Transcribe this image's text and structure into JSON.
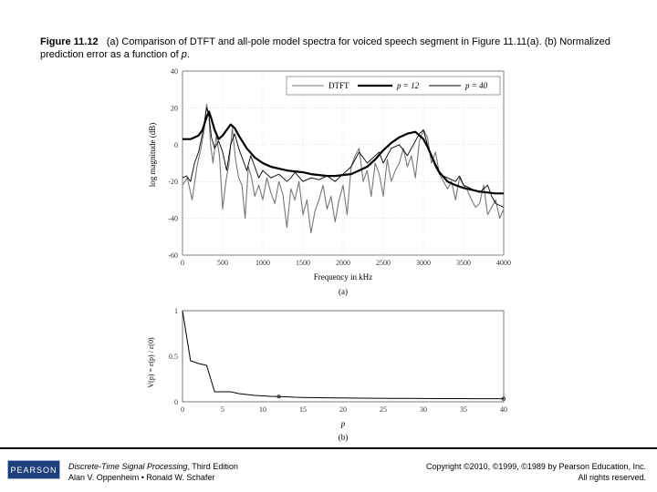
{
  "caption": {
    "fig_label": "Figure 11.12",
    "text_before_p": "(a) Comparison of DTFT and all-pole model spectra for voiced speech segment in Figure 11.11(a). (b) Normalized prediction error as a function of",
    "p_symbol": "p",
    "period": "."
  },
  "chart_data": [
    {
      "type": "line",
      "panel_label": "(a)",
      "xlabel": "Frequency in kHz",
      "ylabel": "log magnitude (dB)",
      "xlim": [
        0,
        4000
      ],
      "ylim": [
        -60,
        40
      ],
      "x_ticks": [
        "0",
        "500",
        "1000",
        "1500",
        "2000",
        "2500",
        "3000",
        "3500",
        "4000"
      ],
      "y_ticks": [
        "40",
        "20",
        "0",
        "-20",
        "-40",
        "-60"
      ],
      "legend": {
        "placement": "top-right",
        "entries": [
          "DTFT",
          "p = 12",
          "p = 40"
        ]
      },
      "series": [
        {
          "name": "DTFT",
          "color": "#777777",
          "width": 1.1,
          "x": [
            0,
            60,
            120,
            180,
            230,
            270,
            300,
            330,
            350,
            380,
            420,
            460,
            500,
            540,
            580,
            620,
            660,
            700,
            740,
            780,
            820,
            860,
            900,
            950,
            1000,
            1050,
            1100,
            1150,
            1200,
            1250,
            1300,
            1350,
            1400,
            1450,
            1500,
            1550,
            1600,
            1650,
            1700,
            1750,
            1800,
            1850,
            1900,
            1950,
            2000,
            2050,
            2100,
            2150,
            2200,
            2250,
            2300,
            2350,
            2400,
            2450,
            2500,
            2550,
            2600,
            2650,
            2700,
            2750,
            2800,
            2850,
            2900,
            2950,
            3000,
            3050,
            3100,
            3150,
            3200,
            3250,
            3300,
            3350,
            3400,
            3450,
            3500,
            3550,
            3600,
            3650,
            3700,
            3750,
            3800,
            3850,
            3900,
            3950,
            4000
          ],
          "y": [
            -22,
            -18,
            -30,
            -12,
            -2,
            8,
            22,
            15,
            0,
            -10,
            5,
            -6,
            -35,
            -20,
            -10,
            9,
            -8,
            -18,
            -22,
            -40,
            -12,
            -18,
            -28,
            -22,
            -30,
            -18,
            -26,
            -32,
            -20,
            -27,
            -45,
            -24,
            -30,
            -20,
            -38,
            -30,
            -48,
            -36,
            -30,
            -22,
            -35,
            -28,
            -42,
            -30,
            -22,
            -38,
            -12,
            -6,
            -2,
            -20,
            -14,
            -28,
            -10,
            -16,
            -28,
            -8,
            -20,
            -14,
            -10,
            -2,
            -12,
            -6,
            -18,
            2,
            8,
            4,
            -10,
            -4,
            -16,
            -20,
            -24,
            -20,
            -30,
            -18,
            -22,
            -25,
            -30,
            -34,
            -32,
            -22,
            -38,
            -34,
            -30,
            -40,
            -35
          ]
        },
        {
          "name": "p = 12",
          "color": "#000000",
          "width": 2.2,
          "x": [
            0,
            100,
            200,
            250,
            300,
            330,
            360,
            400,
            450,
            500,
            550,
            600,
            650,
            700,
            800,
            900,
            1000,
            1100,
            1200,
            1300,
            1400,
            1500,
            1600,
            1700,
            1800,
            1900,
            2000,
            2100,
            2200,
            2300,
            2400,
            2500,
            2600,
            2700,
            2800,
            2900,
            3000,
            3050,
            3100,
            3150,
            3200,
            3300,
            3400,
            3500,
            3600,
            3700,
            3800,
            3900,
            4000
          ],
          "y": [
            3,
            3,
            5,
            8,
            15,
            18,
            14,
            8,
            3,
            5,
            8,
            11,
            9,
            5,
            -2,
            -7,
            -10,
            -12,
            -13,
            -14,
            -14.5,
            -15,
            -16,
            -16.5,
            -17,
            -17,
            -16.5,
            -16,
            -14,
            -12,
            -8,
            -3,
            1,
            4,
            6,
            7,
            3,
            -1,
            -6,
            -11,
            -15,
            -20,
            -22,
            -23.5,
            -24.5,
            -25.5,
            -26,
            -26.5,
            -26.5
          ]
        },
        {
          "name": "p = 40",
          "color": "#000000",
          "width": 0.9,
          "x": [
            0,
            50,
            100,
            150,
            200,
            250,
            300,
            330,
            360,
            400,
            450,
            500,
            550,
            600,
            650,
            700,
            750,
            800,
            850,
            900,
            950,
            1000,
            1100,
            1200,
            1300,
            1350,
            1400,
            1500,
            1600,
            1700,
            1800,
            1900,
            2000,
            2100,
            2150,
            2200,
            2300,
            2400,
            2450,
            2500,
            2600,
            2700,
            2800,
            2900,
            2950,
            3000,
            3050,
            3100,
            3150,
            3200,
            3300,
            3400,
            3450,
            3500,
            3600,
            3700,
            3800,
            3850,
            3900,
            4000
          ],
          "y": [
            -18,
            -17,
            -20,
            -10,
            -4,
            6,
            20,
            16,
            4,
            -2,
            2,
            -4,
            -14,
            0,
            6,
            -2,
            -8,
            -14,
            -6,
            -12,
            -18,
            -14,
            -18,
            -16,
            -20,
            -18,
            -15,
            -20,
            -18,
            -19,
            -17,
            -20,
            -16,
            -12,
            -8,
            -4,
            -10,
            -6,
            -4,
            -10,
            -2,
            0,
            -6,
            2,
            6,
            8,
            0,
            -6,
            -12,
            -16,
            -18,
            -20,
            -17,
            -22,
            -24,
            -26,
            -22,
            -28,
            -32,
            -34
          ]
        }
      ]
    },
    {
      "type": "line",
      "panel_label": "(b)",
      "xlabel": "p",
      "ylabel": "V(p) = ε(p) / ε(0)",
      "xlim": [
        0,
        40
      ],
      "ylim": [
        0,
        1
      ],
      "x_ticks": [
        "0",
        "5",
        "10",
        "15",
        "20",
        "25",
        "30",
        "35",
        "40"
      ],
      "y_ticks": [
        "1",
        "0.5",
        "0"
      ],
      "series": [
        {
          "name": "V(p)",
          "color": "#000000",
          "width": 1,
          "x": [
            0,
            1,
            2,
            3,
            4,
            5,
            6,
            7,
            8,
            9,
            10,
            11,
            12,
            13,
            14,
            15,
            16,
            17,
            18,
            19,
            20,
            22,
            24,
            26,
            28,
            30,
            32,
            34,
            36,
            38,
            40
          ],
          "y": [
            1.0,
            0.45,
            0.42,
            0.4,
            0.11,
            0.11,
            0.11,
            0.09,
            0.08,
            0.07,
            0.065,
            0.06,
            0.058,
            0.055,
            0.05,
            0.048,
            0.046,
            0.045,
            0.044,
            0.043,
            0.042,
            0.04,
            0.039,
            0.038,
            0.037,
            0.036,
            0.035,
            0.035,
            0.034,
            0.034,
            0.034
          ]
        }
      ],
      "markers_at": [
        12,
        40
      ]
    }
  ],
  "footer": {
    "logo": "PEARSON",
    "book_title": "Discrete-Time Signal Processing",
    "book_edition": ", Third Edition",
    "authors": "Alan V. Oppenheim • Ronald W. Schafer",
    "copyright": "Copyright ©2010, ©1999, ©1989 by Pearson Education, Inc.",
    "rights": "All rights reserved."
  }
}
